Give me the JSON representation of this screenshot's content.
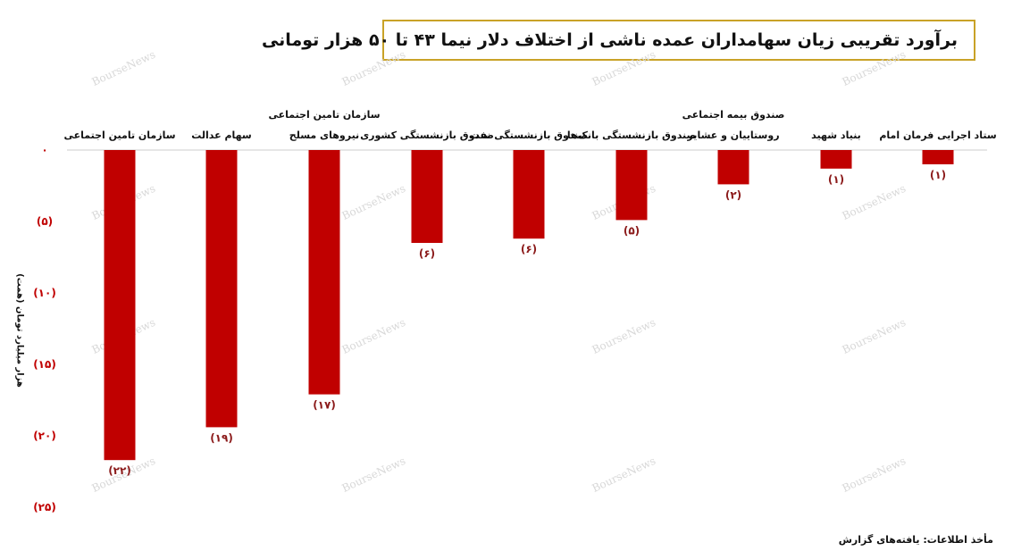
{
  "title": "برآورد تقریبی زیان سهامداران عمده ناشی از اختلاف دلار نیما ۴۳ تا ۵۰ هزار تومانی",
  "source": "مأخذ اطلاعات: یافته‌های گزارش",
  "watermark": "BourseNews",
  "colors": {
    "bar": "#c00000",
    "axis_text": "#c00000",
    "baseline": "#cccccc",
    "frame": "#c9a227"
  },
  "chart_data": {
    "type": "bar",
    "ylabel": "هزار میلیارد تومان (همت)",
    "ylim": [
      -25,
      0
    ],
    "yticks": [
      {
        "value": 0,
        "label": "۰"
      },
      {
        "value": -5,
        "label": "(۵)"
      },
      {
        "value": -10,
        "label": "(۱۰)"
      },
      {
        "value": -15,
        "label": "(۱۵)"
      },
      {
        "value": -20,
        "label": "(۲۰)"
      },
      {
        "value": -25,
        "label": "(۲۵)"
      }
    ],
    "categories": [
      [
        "ستاد اجرایی فرمان امام"
      ],
      [
        "بنیاد شهید"
      ],
      [
        "صندوق بیمه اجتماعی",
        "روستاییان و عشایر"
      ],
      [
        "صندوق بازنشستگی بانک‌ها"
      ],
      [
        "صندوق بازنشستگی نفت"
      ],
      [
        "صندوق بازنشستگی کشوری"
      ],
      [
        "سازمان تامین اجتماعی",
        "نیروهای مسلح"
      ],
      [
        "سهام عدالت"
      ],
      [
        "سازمان تامین اجتماعی"
      ]
    ],
    "values": [
      -1,
      -1.3,
      -2.4,
      -4.9,
      -6.2,
      -6.5,
      -17.1,
      -19.4,
      -21.7
    ],
    "data_labels": [
      "(۱)",
      "(۱)",
      "(۲)",
      "(۵)",
      "(۶)",
      "(۶)",
      "(۱۷)",
      "(۱۹)",
      "(۲۲)"
    ]
  }
}
